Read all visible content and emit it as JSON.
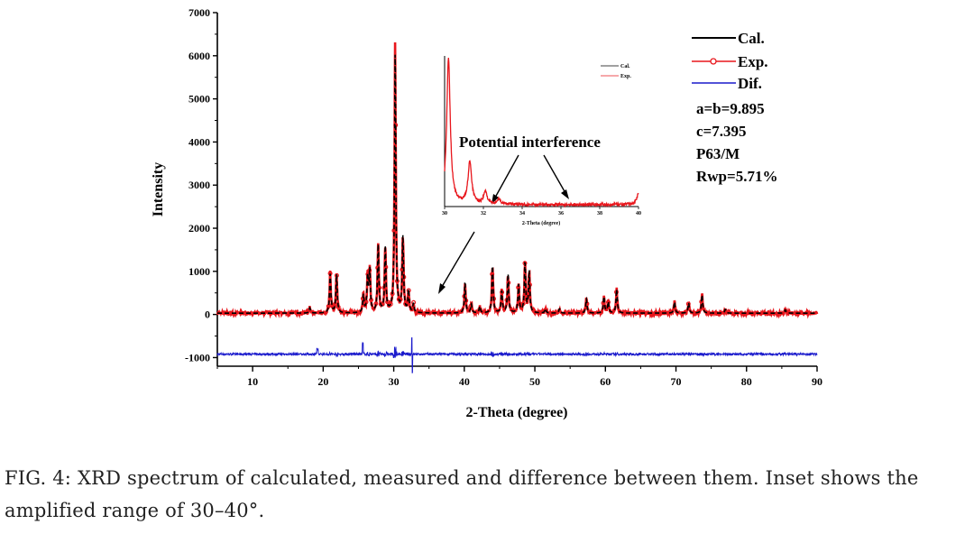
{
  "chart_data": {
    "type": "line",
    "xlabel": "2-Theta (degree)",
    "ylabel": "Intensity",
    "xlim": [
      5,
      90
    ],
    "ylim": [
      -1200,
      7000
    ],
    "xticks": [
      10,
      20,
      30,
      40,
      50,
      60,
      70,
      80,
      90
    ],
    "yticks": [
      7000,
      6000,
      5000,
      4000,
      3000,
      2000,
      1000,
      0,
      -1000
    ],
    "ytick_labels": [
      "7000",
      "6000",
      "5000",
      "4000",
      "3000",
      "2000",
      "1000",
      "0",
      "-1000"
    ],
    "difference_offset": -920,
    "peaks": [
      {
        "x": 18.1,
        "h": 120
      },
      {
        "x": 21.0,
        "h": 900
      },
      {
        "x": 21.9,
        "h": 900
      },
      {
        "x": 25.7,
        "h": 400
      },
      {
        "x": 26.3,
        "h": 800
      },
      {
        "x": 26.6,
        "h": 950
      },
      {
        "x": 27.8,
        "h": 1550
      },
      {
        "x": 28.8,
        "h": 1500
      },
      {
        "x": 30.2,
        "h": 6000
      },
      {
        "x": 31.3,
        "h": 1750
      },
      {
        "x": 32.1,
        "h": 500
      },
      {
        "x": 32.8,
        "h": 200
      },
      {
        "x": 40.1,
        "h": 700
      },
      {
        "x": 41.0,
        "h": 200
      },
      {
        "x": 42.2,
        "h": 150
      },
      {
        "x": 44.0,
        "h": 1100
      },
      {
        "x": 45.3,
        "h": 500
      },
      {
        "x": 46.2,
        "h": 900
      },
      {
        "x": 47.7,
        "h": 650
      },
      {
        "x": 48.6,
        "h": 1150
      },
      {
        "x": 49.2,
        "h": 950
      },
      {
        "x": 51.5,
        "h": 100
      },
      {
        "x": 53.5,
        "h": 100
      },
      {
        "x": 57.3,
        "h": 330
      },
      {
        "x": 59.8,
        "h": 380
      },
      {
        "x": 60.4,
        "h": 250
      },
      {
        "x": 61.6,
        "h": 550
      },
      {
        "x": 69.8,
        "h": 260
      },
      {
        "x": 71.8,
        "h": 230
      },
      {
        "x": 73.7,
        "h": 420
      },
      {
        "x": 77.0,
        "h": 90
      },
      {
        "x": 85.5,
        "h": 80
      }
    ],
    "series": [
      {
        "name": "Cal.",
        "color": "#000000"
      },
      {
        "name": "Exp.",
        "color": "#e8161c"
      },
      {
        "name": "Dif.",
        "color": "#1a1acc"
      }
    ],
    "inset": {
      "xlim": [
        30,
        40
      ],
      "ylim": [
        0,
        6200
      ],
      "xticks": [
        30,
        32,
        34,
        36,
        38,
        40
      ],
      "xlabel": "2-Theta (degree)",
      "legend": [
        "Cal.",
        "Exp."
      ]
    },
    "annotations": {
      "potential_interference": "Potential interference",
      "lattice_ab": "a=b=9.895",
      "lattice_c": "c=7.395",
      "space_group": "P63/M",
      "rwp": "Rwp=5.71%"
    }
  },
  "caption": {
    "line1": "FIG. 4:  XRD spectrum of calculated, measured and difference between them.  Inset shows the",
    "line2": "amplified range of 30–40°."
  }
}
